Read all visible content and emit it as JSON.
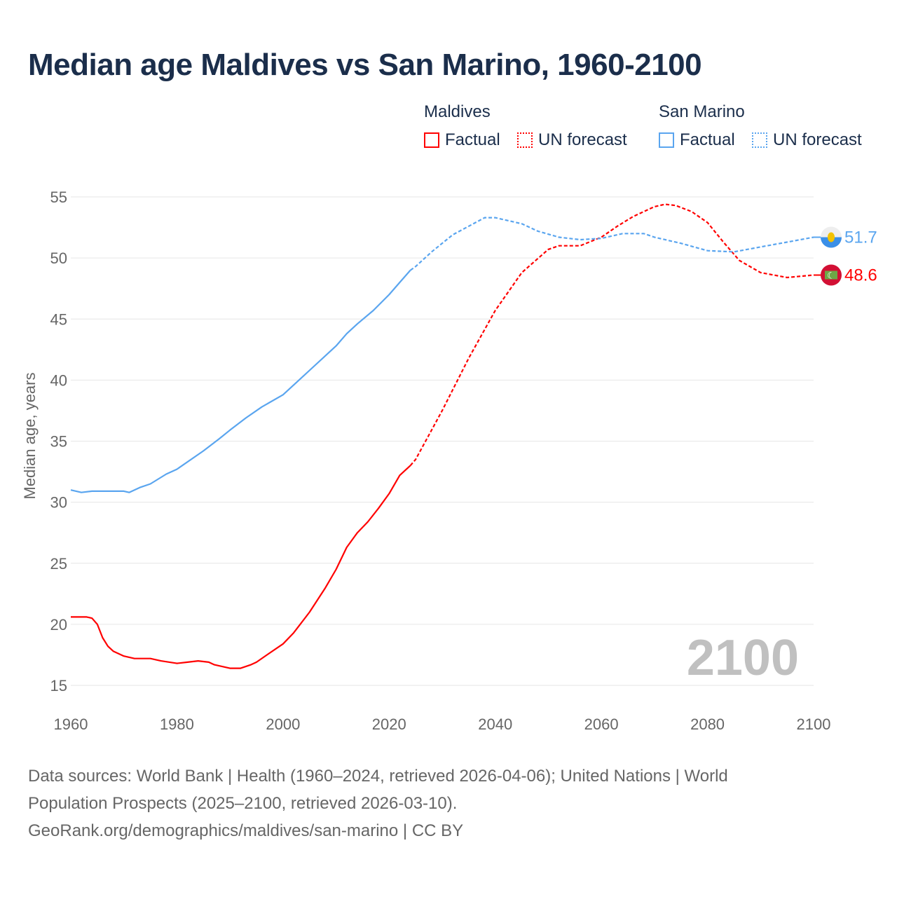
{
  "chart_data": {
    "type": "line",
    "title": "Median age Maldives vs San Marino, 1960-2100",
    "ylabel": "Median age, years",
    "xlabel": "",
    "xlim": [
      1960,
      2100
    ],
    "ylim": [
      15,
      55
    ],
    "xticks": [
      "1960",
      "1980",
      "2000",
      "2020",
      "2040",
      "2060",
      "2080",
      "2100"
    ],
    "yticks": [
      "15",
      "20",
      "25",
      "30",
      "35",
      "40",
      "45",
      "50",
      "55"
    ],
    "grid": true,
    "year_watermark": "2100",
    "legend": {
      "groups": [
        {
          "name": "Maldives",
          "factual": "Factual",
          "forecast": "UN forecast"
        },
        {
          "name": "San Marino",
          "factual": "Factual",
          "forecast": "UN forecast"
        }
      ]
    },
    "colors": {
      "Maldives": "#ff0000",
      "San Marino": "#5aa5ef"
    },
    "series": [
      {
        "name": "Maldives",
        "end_label": "48.6",
        "factual": [
          [
            1960,
            20.6
          ],
          [
            1963,
            20.6
          ],
          [
            1964,
            20.5
          ],
          [
            1965,
            20.0
          ],
          [
            1966,
            18.9
          ],
          [
            1967,
            18.2
          ],
          [
            1968,
            17.8
          ],
          [
            1970,
            17.4
          ],
          [
            1972,
            17.2
          ],
          [
            1975,
            17.2
          ],
          [
            1977,
            17.0
          ],
          [
            1980,
            16.8
          ],
          [
            1982,
            16.9
          ],
          [
            1984,
            17.0
          ],
          [
            1986,
            16.9
          ],
          [
            1987,
            16.7
          ],
          [
            1990,
            16.4
          ],
          [
            1992,
            16.4
          ],
          [
            1994,
            16.7
          ],
          [
            1995,
            16.9
          ],
          [
            1997,
            17.5
          ],
          [
            2000,
            18.4
          ],
          [
            2002,
            19.3
          ],
          [
            2005,
            21.0
          ],
          [
            2008,
            23.0
          ],
          [
            2010,
            24.5
          ],
          [
            2012,
            26.3
          ],
          [
            2014,
            27.5
          ],
          [
            2016,
            28.4
          ],
          [
            2018,
            29.5
          ],
          [
            2020,
            30.7
          ],
          [
            2022,
            32.2
          ],
          [
            2024,
            33.0
          ]
        ],
        "forecast": [
          [
            2024,
            33.0
          ],
          [
            2025,
            33.5
          ],
          [
            2030,
            37.5
          ],
          [
            2035,
            41.8
          ],
          [
            2040,
            45.7
          ],
          [
            2045,
            48.8
          ],
          [
            2050,
            50.7
          ],
          [
            2052,
            51.0
          ],
          [
            2056,
            51.0
          ],
          [
            2060,
            51.7
          ],
          [
            2063,
            52.6
          ],
          [
            2066,
            53.4
          ],
          [
            2070,
            54.2
          ],
          [
            2072,
            54.4
          ],
          [
            2074,
            54.3
          ],
          [
            2077,
            53.8
          ],
          [
            2080,
            52.9
          ],
          [
            2083,
            51.3
          ],
          [
            2086,
            49.8
          ],
          [
            2090,
            48.8
          ],
          [
            2095,
            48.4
          ],
          [
            2100,
            48.6
          ]
        ]
      },
      {
        "name": "San Marino",
        "end_label": "51.7",
        "factual": [
          [
            1960,
            31.0
          ],
          [
            1962,
            30.8
          ],
          [
            1964,
            30.9
          ],
          [
            1970,
            30.9
          ],
          [
            1971,
            30.8
          ],
          [
            1973,
            31.2
          ],
          [
            1975,
            31.5
          ],
          [
            1978,
            32.3
          ],
          [
            1980,
            32.7
          ],
          [
            1985,
            34.2
          ],
          [
            1988,
            35.2
          ],
          [
            1990,
            35.9
          ],
          [
            1993,
            36.9
          ],
          [
            1996,
            37.8
          ],
          [
            2000,
            38.8
          ],
          [
            2003,
            40.0
          ],
          [
            2006,
            41.2
          ],
          [
            2010,
            42.8
          ],
          [
            2012,
            43.8
          ],
          [
            2014,
            44.6
          ],
          [
            2017,
            45.7
          ],
          [
            2020,
            47.0
          ],
          [
            2022,
            48.0
          ],
          [
            2024,
            49.0
          ]
        ],
        "forecast": [
          [
            2024,
            49.0
          ],
          [
            2025,
            49.3
          ],
          [
            2028,
            50.5
          ],
          [
            2032,
            51.9
          ],
          [
            2035,
            52.6
          ],
          [
            2038,
            53.3
          ],
          [
            2040,
            53.3
          ],
          [
            2045,
            52.8
          ],
          [
            2048,
            52.2
          ],
          [
            2052,
            51.7
          ],
          [
            2056,
            51.5
          ],
          [
            2060,
            51.6
          ],
          [
            2064,
            52.0
          ],
          [
            2068,
            52.0
          ],
          [
            2070,
            51.7
          ],
          [
            2075,
            51.2
          ],
          [
            2080,
            50.6
          ],
          [
            2085,
            50.5
          ],
          [
            2090,
            50.9
          ],
          [
            2095,
            51.3
          ],
          [
            2100,
            51.7
          ]
        ]
      }
    ]
  },
  "sources": [
    "Data sources: World Bank | Health (1960–2024, retrieved 2026-04-06); United Nations | World",
    "Population Prospects (2025–2100, retrieved 2026-03-10).",
    "GeoRank.org/demographics/maldives/san-marino | CC BY"
  ]
}
